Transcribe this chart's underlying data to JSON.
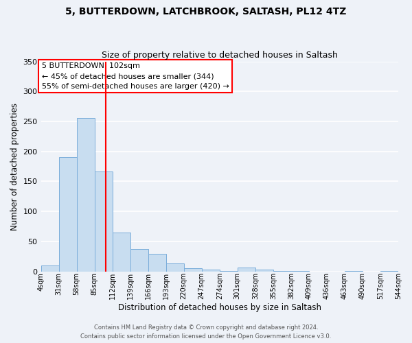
{
  "title": "5, BUTTERDOWN, LATCHBROOK, SALTASH, PL12 4TZ",
  "subtitle": "Size of property relative to detached houses in Saltash",
  "xlabel": "Distribution of detached houses by size in Saltash",
  "ylabel": "Number of detached properties",
  "bar_color": "#c8ddf0",
  "bar_edge_color": "#7aadda",
  "background_color": "#eef2f8",
  "grid_color": "#ffffff",
  "annotation_title": "5 BUTTERDOWN: 102sqm",
  "annotation_line1": "← 45% of detached houses are smaller (344)",
  "annotation_line2": "55% of semi-detached houses are larger (420) →",
  "red_line_x": 102,
  "bin_edges": [
    4,
    31,
    58,
    85,
    112,
    139,
    166,
    193,
    220,
    247,
    274,
    301,
    328,
    355,
    382,
    409,
    436,
    463,
    490,
    517,
    544
  ],
  "bin_counts": [
    10,
    191,
    256,
    167,
    65,
    37,
    29,
    13,
    5,
    3,
    1,
    6,
    3,
    1,
    1,
    0,
    0,
    1,
    0,
    1
  ],
  "tick_labels": [
    "4sqm",
    "31sqm",
    "58sqm",
    "85sqm",
    "112sqm",
    "139sqm",
    "166sqm",
    "193sqm",
    "220sqm",
    "247sqm",
    "274sqm",
    "301sqm",
    "328sqm",
    "355sqm",
    "382sqm",
    "409sqm",
    "436sqm",
    "463sqm",
    "490sqm",
    "517sqm",
    "544sqm"
  ],
  "ylim": [
    0,
    350
  ],
  "yticks": [
    0,
    50,
    100,
    150,
    200,
    250,
    300,
    350
  ],
  "footer_line1": "Contains HM Land Registry data © Crown copyright and database right 2024.",
  "footer_line2": "Contains public sector information licensed under the Open Government Licence v3.0."
}
